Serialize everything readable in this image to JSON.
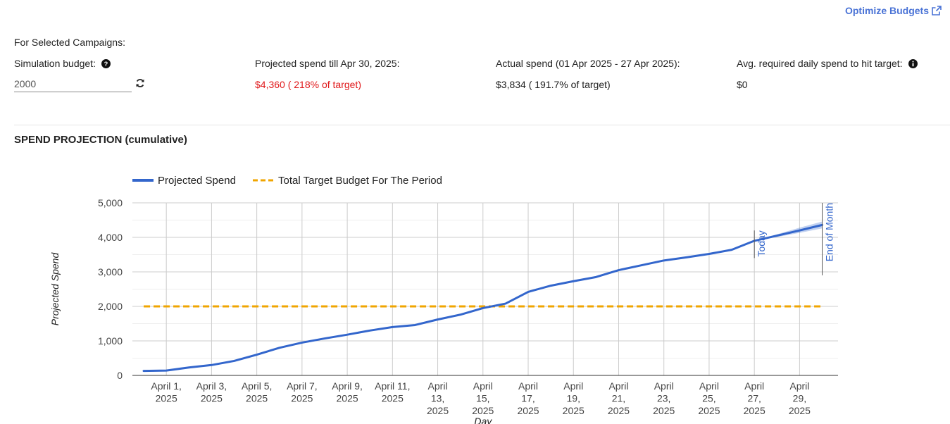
{
  "header": {
    "optimize_label": "Optimize Budgets"
  },
  "summary": {
    "section_label": "For Selected Campaigns:",
    "simulation": {
      "label": "Simulation budget:",
      "value": "2000"
    },
    "projected": {
      "label": "Projected spend till Apr 30, 2025:",
      "value": "$4,360 ( 218% of target)",
      "color": "#e0191b"
    },
    "actual": {
      "label": "Actual spend (01 Apr 2025 - 27 Apr 2025):",
      "value": "$3,834 ( 191.7% of target)"
    },
    "required": {
      "label": "Avg. required daily spend to hit target:",
      "value": "$0"
    }
  },
  "chart_heading": "SPEND PROJECTION (cumulative)",
  "chart_data": {
    "type": "line",
    "ylabel": "Projected Spend",
    "xlabel": "Day",
    "ylim": [
      0,
      5000
    ],
    "xlim": [
      -0.5,
      30.7
    ],
    "y_ticks": [
      "0",
      "1,000",
      "2,000",
      "3,000",
      "4,000",
      "5,000"
    ],
    "x_ticks": [
      {
        "day": 1,
        "lines": [
          "April 1,",
          "2025"
        ]
      },
      {
        "day": 3,
        "lines": [
          "April 3,",
          "2025"
        ]
      },
      {
        "day": 5,
        "lines": [
          "April 5,",
          "2025"
        ]
      },
      {
        "day": 7,
        "lines": [
          "April 7,",
          "2025"
        ]
      },
      {
        "day": 9,
        "lines": [
          "April 9,",
          "2025"
        ]
      },
      {
        "day": 11,
        "lines": [
          "April 11,",
          "2025"
        ]
      },
      {
        "day": 13,
        "lines": [
          "April",
          "13,",
          "2025"
        ]
      },
      {
        "day": 15,
        "lines": [
          "April",
          "15,",
          "2025"
        ]
      },
      {
        "day": 17,
        "lines": [
          "April",
          "17,",
          "2025"
        ]
      },
      {
        "day": 19,
        "lines": [
          "April",
          "19,",
          "2025"
        ]
      },
      {
        "day": 21,
        "lines": [
          "April",
          "21,",
          "2025"
        ]
      },
      {
        "day": 23,
        "lines": [
          "April",
          "23,",
          "2025"
        ]
      },
      {
        "day": 25,
        "lines": [
          "April",
          "25,",
          "2025"
        ]
      },
      {
        "day": 27,
        "lines": [
          "April",
          "27,",
          "2025"
        ]
      },
      {
        "day": 29,
        "lines": [
          "April",
          "29,",
          "2025"
        ]
      }
    ],
    "grid": true,
    "legend_position": "top-left",
    "series": [
      {
        "name": "Projected Spend",
        "color": "#3366cc",
        "points": [
          [
            0,
            130
          ],
          [
            1,
            140
          ],
          [
            2,
            230
          ],
          [
            3,
            300
          ],
          [
            4,
            420
          ],
          [
            5,
            600
          ],
          [
            6,
            800
          ],
          [
            7,
            950
          ],
          [
            8,
            1070
          ],
          [
            9,
            1180
          ],
          [
            10,
            1300
          ],
          [
            11,
            1400
          ],
          [
            12,
            1460
          ],
          [
            13,
            1620
          ],
          [
            14,
            1760
          ],
          [
            15,
            1950
          ],
          [
            16,
            2080
          ],
          [
            17,
            2420
          ],
          [
            18,
            2600
          ],
          [
            19,
            2730
          ],
          [
            20,
            2850
          ],
          [
            21,
            3050
          ],
          [
            22,
            3190
          ],
          [
            23,
            3330
          ],
          [
            24,
            3420
          ],
          [
            25,
            3520
          ],
          [
            26,
            3640
          ],
          [
            27,
            3900
          ],
          [
            28,
            4050
          ],
          [
            29,
            4200
          ],
          [
            30,
            4360
          ]
        ],
        "band": [
          [
            27,
            3900,
            3900
          ],
          [
            28,
            4010,
            4090
          ],
          [
            29,
            4130,
            4280
          ],
          [
            30,
            4260,
            4460
          ]
        ]
      },
      {
        "name": "Total Target Budget For The Period",
        "color": "#f0a500",
        "style": "dashed",
        "x_range": [
          0,
          30
        ],
        "value": 2000
      }
    ],
    "annotations": [
      {
        "label": "Today",
        "day": 27,
        "y_from": 3400,
        "y_to": 4200
      },
      {
        "label": "End of Month",
        "day": 30,
        "y_from": 2900,
        "y_to": 5000
      }
    ]
  }
}
